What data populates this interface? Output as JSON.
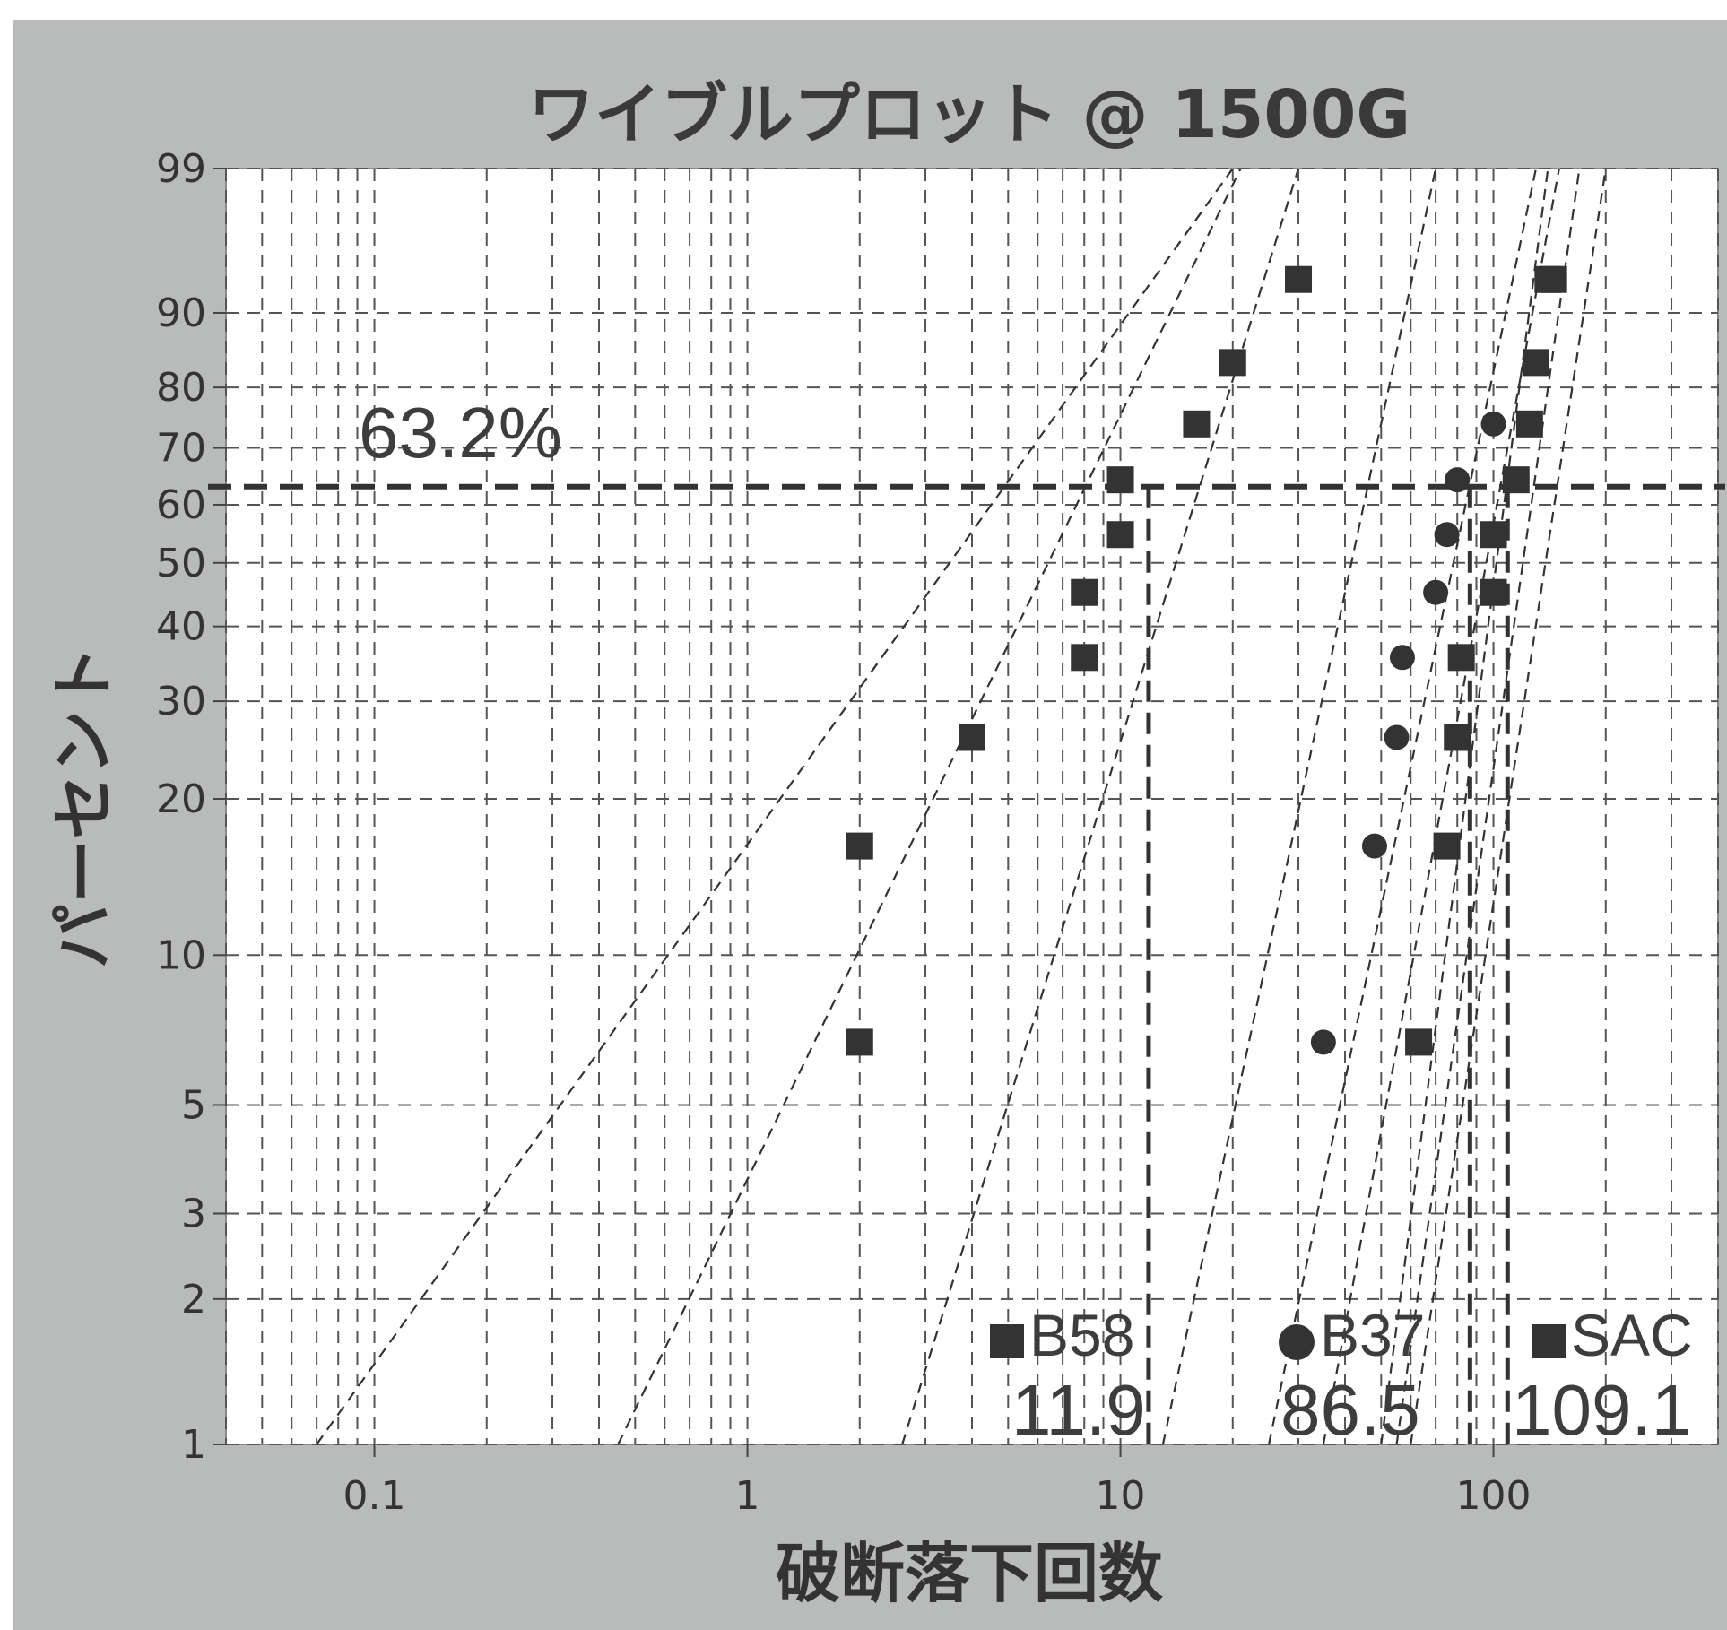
{
  "chart_data": {
    "type": "scatter",
    "title": "ワイブルプロット @ 1500G",
    "xlabel": "破断落下回数",
    "ylabel": "パーセント",
    "x_scale": "log",
    "y_scale": "weibull",
    "xlim": [
      0.04,
      400
    ],
    "ylim": [
      1,
      99
    ],
    "x_ticks": [
      0.1,
      1,
      10,
      100
    ],
    "x_tick_labels": [
      "0.1",
      "1",
      "10",
      "100"
    ],
    "y_ticks": [
      1,
      2,
      3,
      5,
      10,
      20,
      30,
      40,
      50,
      60,
      70,
      80,
      90,
      99
    ],
    "y_tick_labels": [
      "1",
      "2",
      "3",
      "5",
      "10",
      "20",
      "30",
      "40",
      "50",
      "60",
      "70",
      "80",
      "90",
      "99"
    ],
    "grid": true,
    "reference_line": {
      "y": 63.2,
      "label": "63.2%"
    },
    "series": [
      {
        "name": "B58",
        "marker": "square",
        "eta": 11.9,
        "eta_label": "11.9",
        "points": [
          [
            2,
            6.7
          ],
          [
            2,
            16.3
          ],
          [
            4,
            25.9
          ],
          [
            8,
            35.6
          ],
          [
            8,
            45.2
          ],
          [
            10,
            54.8
          ],
          [
            10,
            64.4
          ],
          [
            16,
            74.1
          ],
          [
            20,
            83.7
          ],
          [
            30,
            93.3
          ]
        ],
        "fit": {
          "x": [
            0.45,
            21
          ],
          "y": [
            1,
            99
          ]
        },
        "ci_lower": {
          "x": [
            2.6,
            30
          ],
          "y": [
            1,
            99
          ]
        },
        "ci_upper": {
          "x": [
            0.07,
            20
          ],
          "y": [
            1,
            99
          ]
        }
      },
      {
        "name": "B37",
        "marker": "circle",
        "eta": 86.5,
        "eta_label": "86.5",
        "points": [
          [
            35,
            6.7
          ],
          [
            48,
            16.3
          ],
          [
            55,
            25.9
          ],
          [
            57,
            35.6
          ],
          [
            70,
            45.2
          ],
          [
            75,
            54.8
          ],
          [
            80,
            64.4
          ],
          [
            100,
            74.1
          ]
        ],
        "fit": {
          "x": [
            25,
            130
          ],
          "y": [
            1,
            99
          ]
        },
        "ci_lower": {
          "x": [
            35,
            150
          ],
          "y": [
            1,
            99
          ]
        },
        "ci_upper": {
          "x": [
            13,
            70
          ],
          "y": [
            1,
            99
          ]
        }
      },
      {
        "name": "SAC",
        "marker": "square",
        "eta": 109.1,
        "eta_label": "109.1",
        "points": [
          [
            63,
            6.7
          ],
          [
            75,
            16.3
          ],
          [
            80,
            25.9
          ],
          [
            82,
            35.6
          ],
          [
            100,
            45.2
          ],
          [
            100,
            54.8
          ],
          [
            115,
            64.4
          ],
          [
            125,
            74.1
          ],
          [
            130,
            83.7
          ],
          [
            140,
            93.3
          ],
          [
            145,
            93.3
          ]
        ],
        "fit": {
          "x": [
            55,
            170
          ],
          "y": [
            1,
            99
          ]
        },
        "ci_lower": {
          "x": [
            60,
            200
          ],
          "y": [
            1,
            99
          ]
        },
        "ci_upper": {
          "x": [
            50,
            140
          ],
          "y": [
            1,
            99
          ]
        }
      }
    ],
    "colors": {
      "marker": "#333333",
      "grid": "#555555",
      "background": "#b8bbb9",
      "plot_area": "#ffffff"
    }
  }
}
